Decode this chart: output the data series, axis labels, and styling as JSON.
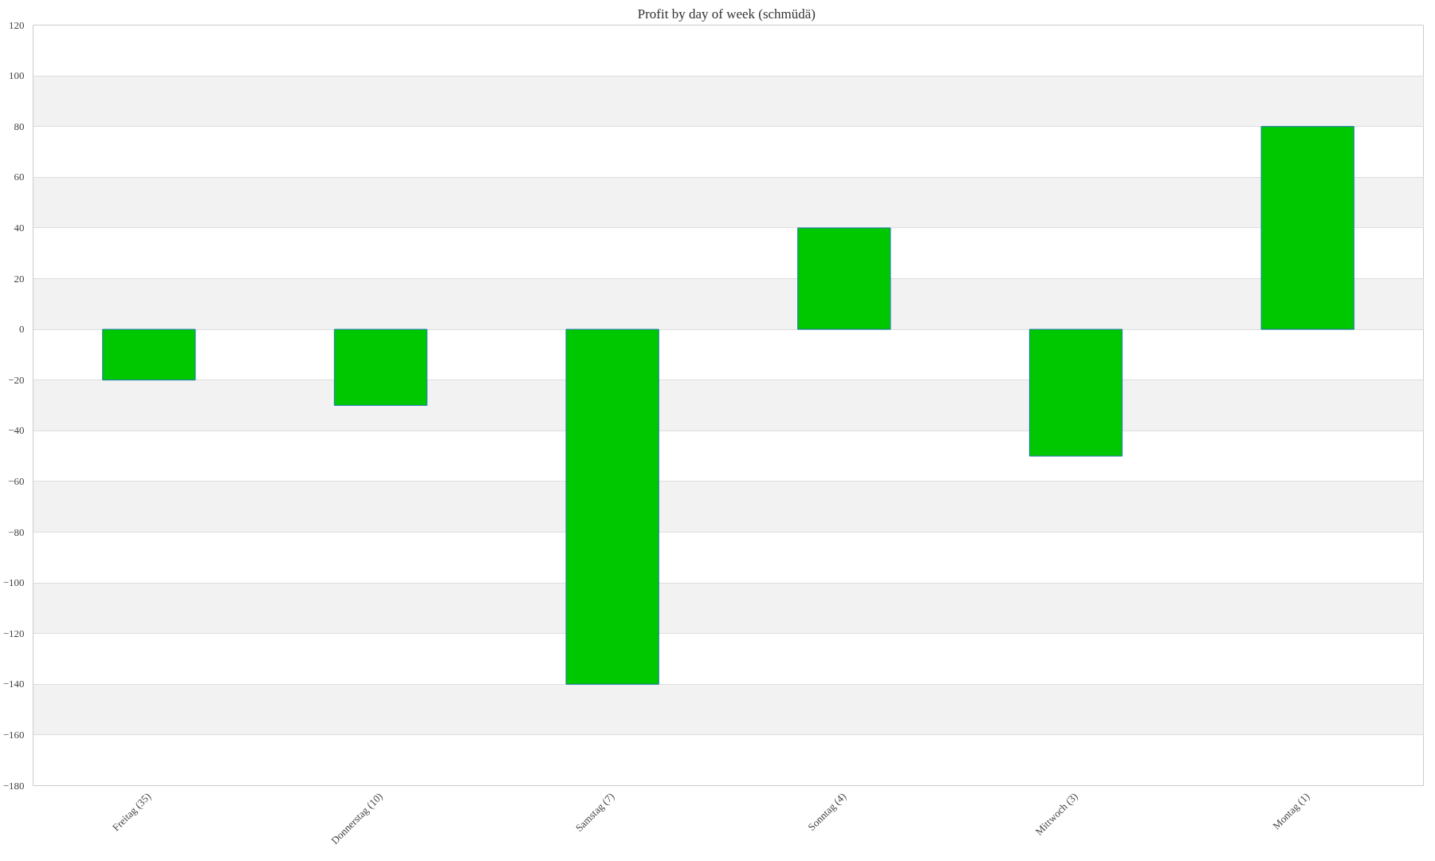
{
  "chart_data": {
    "type": "bar",
    "title": "Profit by day of week  (schmüdä)",
    "categories": [
      "Freitag (35)",
      "Donnerstag (10)",
      "Samstag (7)",
      "Sonntag (4)",
      "Mittwoch (3)",
      "Montag (1)"
    ],
    "values": [
      -20,
      -30,
      -140,
      40,
      -50,
      80
    ],
    "color": "#00c800",
    "ylim": [
      -180,
      120
    ],
    "yticks": [
      -180,
      -160,
      -140,
      -120,
      -100,
      -80,
      -60,
      -40,
      -20,
      0,
      20,
      40,
      60,
      80,
      100,
      120
    ],
    "grid": "y"
  }
}
